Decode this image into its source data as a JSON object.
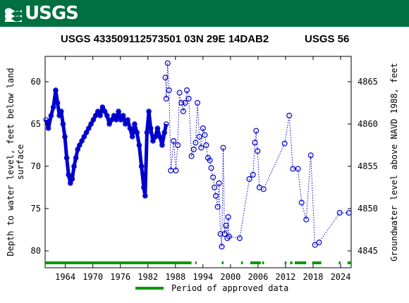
{
  "header": {
    "logo_text": "USGS",
    "logo_icon": "usgs-wave-icon",
    "bg_color": "#006f41"
  },
  "chart_data": {
    "type": "scatter",
    "title": "USGS 433509112573501 03N 29E 14DAB2",
    "title_right": "USGS 56",
    "ylabel_left": [
      "Depth to water level, feet below land",
      "surface"
    ],
    "ylabel_right": "Groundwater level above NAVD 1988, feet",
    "x_range": [
      1959.6,
      2026.3
    ],
    "x_ticks": [
      1964,
      1970,
      1976,
      1982,
      1988,
      1994,
      2000,
      2006,
      2012,
      2018,
      2024
    ],
    "y_left_range": [
      57,
      82
    ],
    "y_left_ticks": [
      60,
      65,
      70,
      75,
      80
    ],
    "y_right_ticks": [
      4865,
      4860,
      4855,
      4850,
      4845
    ],
    "y_right_offset": 4925,
    "marker_color": "#0000cc",
    "approval_color": "#009900",
    "legend_label": "Period of approved data",
    "legend_position": "bottom-center",
    "dense_series": [
      [
        1959.8,
        64.5
      ],
      [
        1960.3,
        65.5
      ],
      [
        1960.9,
        64.0
      ],
      [
        1961.4,
        63.0
      ],
      [
        1961.9,
        61.0
      ],
      [
        1962.3,
        62.5
      ],
      [
        1962.7,
        64.0
      ],
      [
        1963.1,
        63.5
      ],
      [
        1963.5,
        65.0
      ],
      [
        1963.9,
        66.5
      ],
      [
        1964.3,
        69.0
      ],
      [
        1964.7,
        71.0
      ],
      [
        1965.1,
        72.0
      ],
      [
        1965.5,
        71.5
      ],
      [
        1965.9,
        70.0
      ],
      [
        1966.3,
        69.0
      ],
      [
        1966.7,
        68.0
      ],
      [
        1967.1,
        67.5
      ],
      [
        1967.6,
        67.0
      ],
      [
        1968.1,
        66.5
      ],
      [
        1968.6,
        66.0
      ],
      [
        1969.1,
        65.5
      ],
      [
        1969.6,
        65.0
      ],
      [
        1970.1,
        64.5
      ],
      [
        1970.6,
        64.0
      ],
      [
        1971.1,
        63.5
      ],
      [
        1971.6,
        64.0
      ],
      [
        1972.1,
        63.0
      ],
      [
        1972.6,
        63.5
      ],
      [
        1973.1,
        64.0
      ],
      [
        1973.6,
        65.0
      ],
      [
        1974.1,
        64.5
      ],
      [
        1974.6,
        64.0
      ],
      [
        1975.1,
        64.5
      ],
      [
        1975.6,
        63.5
      ],
      [
        1976.1,
        64.5
      ],
      [
        1976.6,
        64.0
      ],
      [
        1977.1,
        65.0
      ],
      [
        1977.6,
        64.5
      ],
      [
        1978.1,
        65.5
      ],
      [
        1978.6,
        66.5
      ],
      [
        1979.1,
        65.0
      ],
      [
        1979.6,
        66.0
      ],
      [
        1980.1,
        67.5
      ],
      [
        1980.6,
        70.0
      ],
      [
        1981.1,
        72.5
      ],
      [
        1981.4,
        73.5
      ],
      [
        1981.8,
        66.0
      ],
      [
        1982.2,
        63.5
      ],
      [
        1982.6,
        65.5
      ],
      [
        1983.1,
        67.0
      ],
      [
        1983.6,
        66.5
      ],
      [
        1984.1,
        65.5
      ],
      [
        1984.6,
        66.5
      ],
      [
        1985.1,
        67.5
      ],
      [
        1985.6,
        66.0
      ],
      [
        1986.0,
        65.0
      ]
    ],
    "sparse_series": [
      [
        1985.8,
        59.5
      ],
      [
        1986.0,
        62.0
      ],
      [
        1986.3,
        57.8
      ],
      [
        1986.6,
        61.0
      ],
      [
        1987.0,
        70.5
      ],
      [
        1987.6,
        67.0
      ],
      [
        1988.1,
        70.5
      ],
      [
        1988.5,
        67.5
      ],
      [
        1988.9,
        61.3
      ],
      [
        1989.3,
        62.5
      ],
      [
        1989.7,
        63.5
      ],
      [
        1990.1,
        62.5
      ],
      [
        1990.5,
        61.0
      ],
      [
        1990.9,
        62.0
      ],
      [
        1991.5,
        68.8
      ],
      [
        1992.0,
        68.0
      ],
      [
        1992.4,
        67.2
      ],
      [
        1992.8,
        62.5
      ],
      [
        1993.2,
        66.5
      ],
      [
        1993.6,
        67.8
      ],
      [
        1994.0,
        65.5
      ],
      [
        1994.4,
        66.3
      ],
      [
        1994.7,
        67.5
      ],
      [
        1995.1,
        69.0
      ],
      [
        1995.5,
        69.3
      ],
      [
        1995.8,
        70.2
      ],
      [
        1996.2,
        71.3
      ],
      [
        1996.5,
        72.5
      ],
      [
        1996.8,
        73.5
      ],
      [
        1997.2,
        74.8
      ],
      [
        1997.5,
        72.0
      ],
      [
        1997.8,
        78.0
      ],
      [
        1998.1,
        79.5
      ],
      [
        1998.4,
        67.8
      ],
      [
        1998.7,
        78.0
      ],
      [
        1999.0,
        77.0
      ],
      [
        1999.3,
        78.5
      ],
      [
        1999.5,
        76.0
      ],
      [
        1999.7,
        78.3
      ],
      [
        2002.0,
        78.5
      ],
      [
        2004.1,
        71.5
      ],
      [
        2004.9,
        71.0
      ],
      [
        2005.3,
        67.2
      ],
      [
        2005.6,
        65.8
      ],
      [
        2005.9,
        68.2
      ],
      [
        2006.3,
        72.5
      ],
      [
        2007.2,
        72.7
      ],
      [
        2011.8,
        67.3
      ],
      [
        2012.8,
        64.0
      ],
      [
        2013.6,
        70.3
      ],
      [
        2014.7,
        70.3
      ],
      [
        2015.5,
        74.3
      ],
      [
        2016.5,
        76.3
      ],
      [
        2017.5,
        68.7
      ],
      [
        2018.4,
        79.3
      ],
      [
        2019.3,
        79.0
      ],
      [
        2023.8,
        75.5
      ],
      [
        2025.8,
        75.5
      ]
    ],
    "approval_periods": [
      [
        1959.6,
        1991.5
      ],
      [
        1992.3,
        1992.6
      ],
      [
        1998.1,
        1998.5
      ],
      [
        2002.3,
        2002.7
      ],
      [
        2004.3,
        2006.6
      ],
      [
        2006.9,
        2007.3
      ],
      [
        2011.8,
        2012.2
      ],
      [
        2013.0,
        2013.5
      ],
      [
        2014.0,
        2016.5
      ],
      [
        2017.8,
        2019.8
      ],
      [
        2023.6,
        2024.0
      ],
      [
        2025.5,
        2026.3
      ]
    ]
  }
}
